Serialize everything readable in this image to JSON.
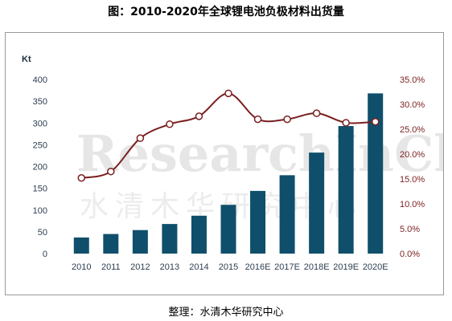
{
  "title": "图：2010-2020年全球锂电池负极材料出货量",
  "source": "整理：水清木华研究中心",
  "watermark": {
    "en": "ResearchInChina",
    "cn": "水清木华研究中心"
  },
  "colors": {
    "bar": "#0f4f6b",
    "line": "#7a1f1f",
    "marker_fill": "#ffffff"
  },
  "chart_data": {
    "type": "bar",
    "categories": [
      "2010",
      "2011",
      "2012",
      "2013",
      "2014",
      "2015",
      "2016E",
      "2017E",
      "2018E",
      "2019E",
      "2020E"
    ],
    "series": [
      {
        "values": [
          37,
          45,
          54,
          68,
          87,
          112,
          144,
          180,
          232,
          293,
          368
        ],
        "axis": "left",
        "type": "bar"
      },
      {
        "values": [
          15.2,
          16.5,
          23.2,
          26.0,
          27.6,
          32.2,
          27.0,
          27.0,
          28.2,
          26.3,
          26.5
        ],
        "axis": "right",
        "type": "line"
      }
    ],
    "ylabel": "Kt",
    "ylim": [
      0,
      400
    ],
    "yticks": [
      "0",
      "50",
      "100",
      "150",
      "200",
      "250",
      "300",
      "350",
      "400"
    ],
    "y2lim": [
      0,
      35
    ],
    "y2ticks": [
      "0.0%",
      "5.0%",
      "10.0%",
      "15.0%",
      "20.0%",
      "25.0%",
      "30.0%",
      "35.0%"
    ],
    "grid": false,
    "legend": false
  }
}
